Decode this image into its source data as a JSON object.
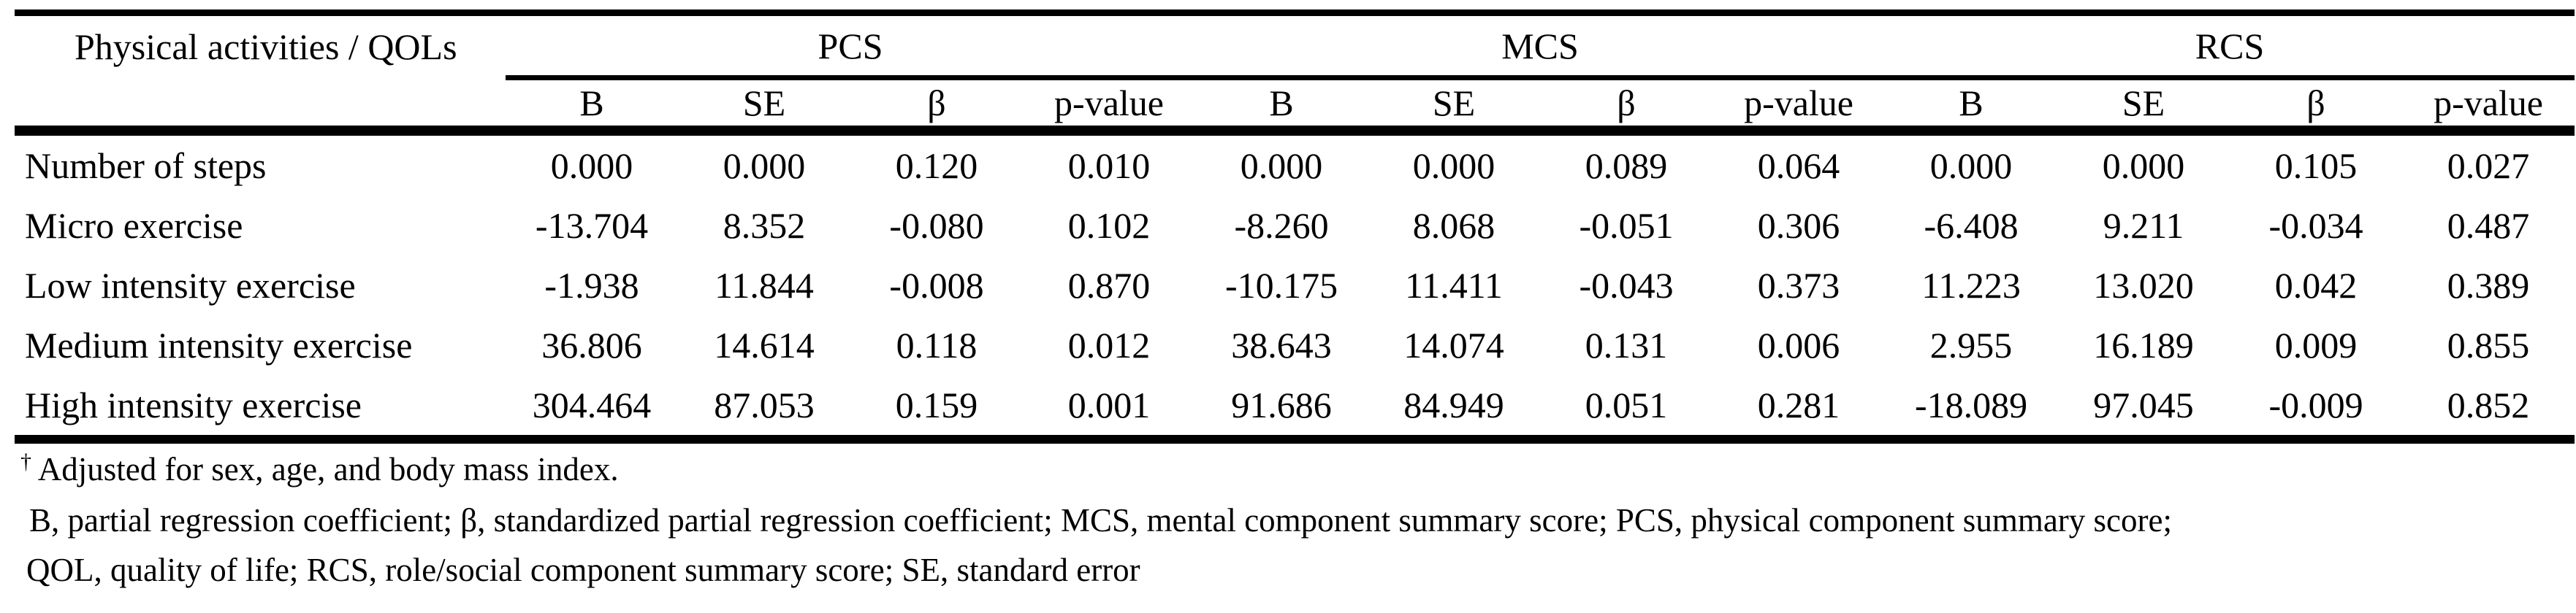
{
  "table": {
    "corner_header": "Physical activities / QOLs",
    "groups": [
      "PCS",
      "MCS",
      "RCS"
    ],
    "subheaders": [
      "B",
      "SE",
      "β",
      "p-value"
    ],
    "rows": [
      {
        "label": "Number of steps",
        "values": [
          "0.000",
          "0.000",
          "0.120",
          "0.010",
          "0.000",
          "0.000",
          "0.089",
          "0.064",
          "0.000",
          "0.000",
          "0.105",
          "0.027"
        ]
      },
      {
        "label": "Micro exercise",
        "values": [
          "-13.704",
          "8.352",
          "-0.080",
          "0.102",
          "-8.260",
          "8.068",
          "-0.051",
          "0.306",
          "-6.408",
          "9.211",
          "-0.034",
          "0.487"
        ]
      },
      {
        "label": "Low intensity exercise",
        "values": [
          "-1.938",
          "11.844",
          "-0.008",
          "0.870",
          "-10.175",
          "11.411",
          "-0.043",
          "0.373",
          "11.223",
          "13.020",
          "0.042",
          "0.389"
        ]
      },
      {
        "label": "Medium intensity exercise",
        "values": [
          "36.806",
          "14.614",
          "0.118",
          "0.012",
          "38.643",
          "14.074",
          "0.131",
          "0.006",
          "2.955",
          "16.189",
          "0.009",
          "0.855"
        ]
      },
      {
        "label": "High intensity exercise",
        "values": [
          "304.464",
          "87.053",
          "0.159",
          "0.001",
          "91.686",
          "84.949",
          "0.051",
          "0.281",
          "-18.089",
          "97.045",
          "-0.009",
          "0.852"
        ]
      }
    ]
  },
  "footnotes": {
    "dagger": "†",
    "line1": " Adjusted for sex, age, and body mass index.",
    "line2": "B, partial regression coefficient; β, standardized partial regression coefficient; MCS, mental component summary score; PCS, physical component summary score;",
    "line3": "QOL, quality of life; RCS, role/social component summary score; SE, standard error"
  }
}
